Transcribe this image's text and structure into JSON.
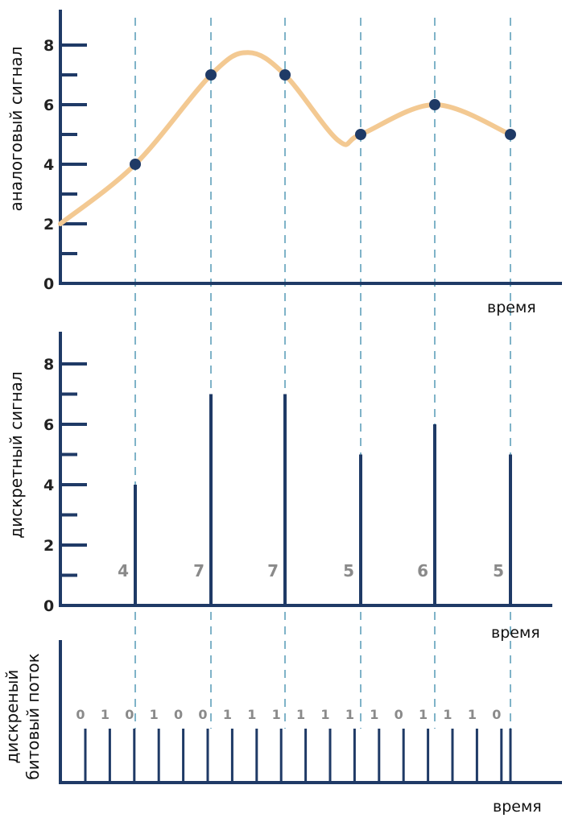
{
  "chart_data": [
    {
      "type": "line",
      "ylabel": "аналоговый сигнал",
      "xlabel": "время",
      "ylim": [
        0,
        9
      ],
      "yticks": [
        "0",
        "2",
        "4",
        "6",
        "8"
      ],
      "samples": [
        4,
        7,
        7,
        5,
        6,
        5
      ],
      "curve_start": 2
    },
    {
      "type": "bar",
      "ylabel": "дискретный сигнал",
      "xlabel": "время",
      "ylim": [
        0,
        9
      ],
      "yticks": [
        "0",
        "2",
        "4",
        "6",
        "8"
      ],
      "values": [
        4,
        7,
        7,
        5,
        6,
        5
      ],
      "value_labels": [
        "4",
        "7",
        "7",
        "5",
        "6",
        "5"
      ]
    },
    {
      "type": "bar",
      "ylabel_lines": [
        "дискреный",
        "битовый поток"
      ],
      "xlabel": "время",
      "bits": [
        "0",
        "1",
        "0",
        "1",
        "0",
        "0",
        "1",
        "1",
        "1",
        "1",
        "1",
        "1",
        "1",
        "0",
        "1",
        "1",
        "1",
        "0"
      ]
    }
  ],
  "colors": {
    "axis": "#1f3a66",
    "curve": "#f3c992",
    "guide": "#7fb3c8",
    "label_gray": "#8a8a8a"
  }
}
